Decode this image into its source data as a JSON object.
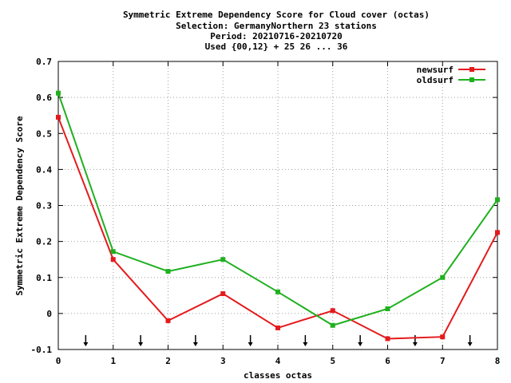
{
  "chart_data": {
    "type": "line",
    "title_lines": [
      "Symmetric Extreme Dependency Score  for Cloud cover (octas)",
      "Selection: GermanyNorthern     23 stations",
      "Period: 20210716-20210720",
      "Used {00,12} + 25 26 ... 36"
    ],
    "xlabel": "classes octas",
    "ylabel": "Symmetric Extreme Dependency Score",
    "xlim": [
      0,
      8
    ],
    "ylim": [
      -0.1,
      0.7
    ],
    "xticks": [
      0,
      1,
      2,
      3,
      4,
      5,
      6,
      7,
      8
    ],
    "xtick_labels": [
      "0",
      "1",
      "2",
      "3",
      "4",
      "5",
      "6",
      "7",
      "8"
    ],
    "yticks": [
      -0.1,
      0,
      0.1,
      0.2,
      0.3,
      0.4,
      0.5,
      0.6,
      0.7
    ],
    "ytick_labels": [
      "-0.1",
      "0",
      "0.1",
      "0.2",
      "0.3",
      "0.4",
      "0.5",
      "0.6",
      "0.7"
    ],
    "grid": true,
    "legend_position": "top-right",
    "arrow_markers_x": [
      0.5,
      1.5,
      2.5,
      3.5,
      4.5,
      5.5,
      6.5,
      7.5
    ],
    "series": [
      {
        "name": "newsurf",
        "color": "#e41a1c",
        "x": [
          0,
          1,
          2,
          3,
          4,
          5,
          6,
          7,
          8
        ],
        "values": [
          0.545,
          0.15,
          -0.02,
          0.055,
          -0.04,
          0.008,
          -0.07,
          -0.065,
          0.225
        ]
      },
      {
        "name": "oldsurf",
        "color": "#1fb01f",
        "x": [
          0,
          1,
          2,
          3,
          4,
          5,
          6,
          7,
          8
        ],
        "values": [
          0.612,
          0.172,
          0.117,
          0.15,
          0.06,
          -0.033,
          0.013,
          0.1,
          0.316
        ]
      }
    ]
  }
}
